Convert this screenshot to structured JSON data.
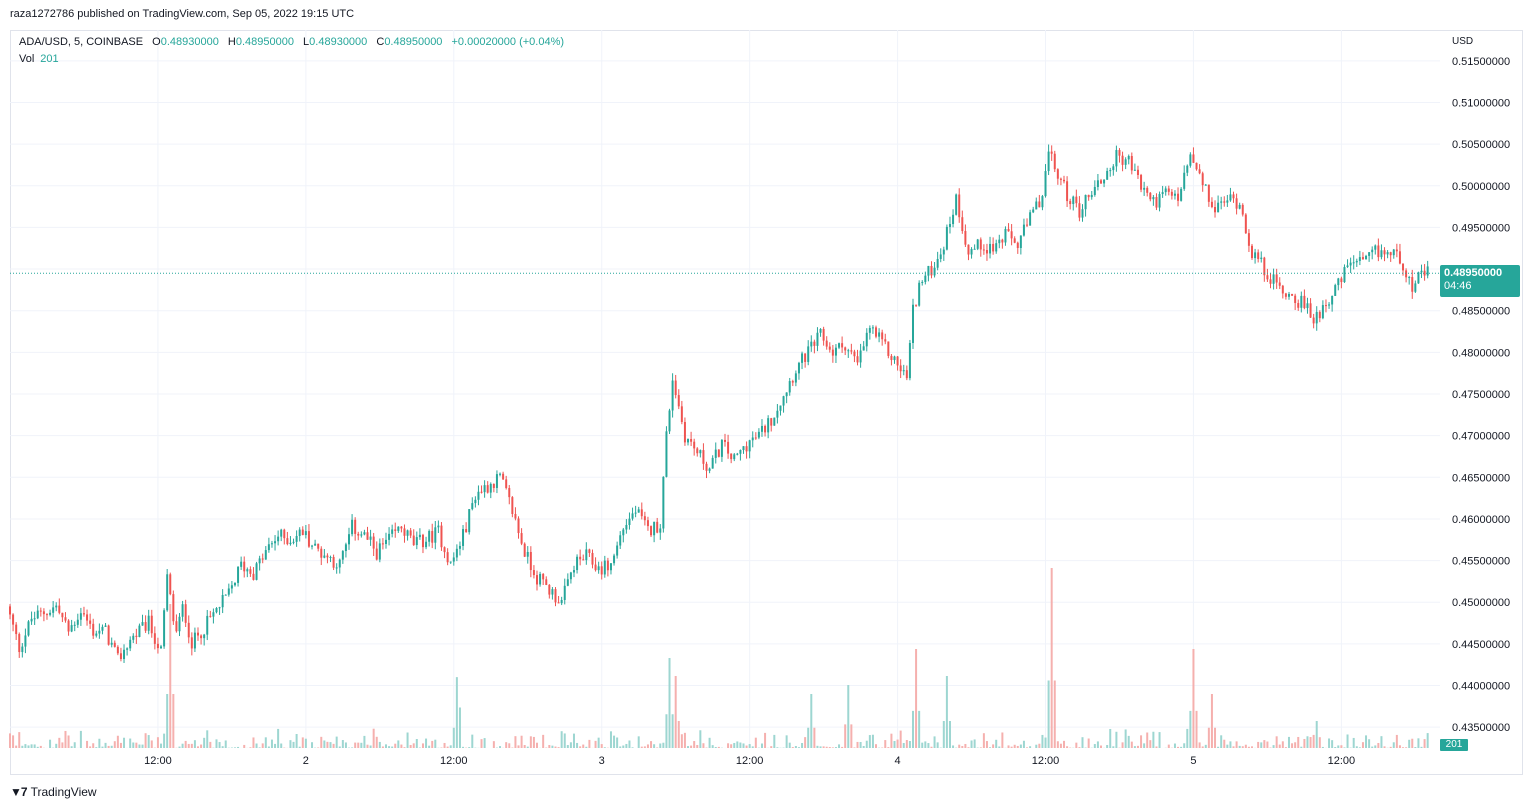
{
  "header": {
    "published_text": "raza1272786 published on TradingView.com, Sep 05, 2022 19:15 UTC"
  },
  "legend": {
    "symbol": "ADA/USD, 5, COINBASE",
    "open_label": "O",
    "open": "0.48930000",
    "high_label": "H",
    "high": "0.48950000",
    "low_label": "L",
    "low": "0.48930000",
    "close_label": "C",
    "close": "0.48950000",
    "change": "+0.00020000 (+0.04%)",
    "vol_label": "Vol",
    "vol_value": "201"
  },
  "price_axis": {
    "currency": "USD",
    "last_price": "0.48950000",
    "countdown": "04:46",
    "volume_tag": "201"
  },
  "footer": {
    "brand": "TradingView"
  },
  "colors": {
    "up": "#26a69a",
    "down": "#ef5350",
    "up_volume": "#9dd6d1",
    "down_volume": "#f5b0ae",
    "grid": "#f0f3fa"
  },
  "chart_data": {
    "type": "candlestick",
    "symbol": "ADA/USD",
    "interval": "5",
    "exchange": "COINBASE",
    "y_axis": {
      "unit": "USD",
      "ticks": [
        "0.51500000",
        "0.51000000",
        "0.50500000",
        "0.50000000",
        "0.49500000",
        "0.49000000",
        "0.48500000",
        "0.48000000",
        "0.47500000",
        "0.47000000",
        "0.46500000",
        "0.46000000",
        "0.45500000",
        "0.45000000",
        "0.44500000",
        "0.44000000",
        "0.43500000"
      ],
      "range": [
        0.4325,
        0.5175
      ]
    },
    "x_axis": {
      "ticks": [
        "12:00",
        "2",
        "12:00",
        "3",
        "12:00",
        "4",
        "12:00",
        "5",
        "12:00"
      ],
      "tick_hours": [
        12,
        24,
        36,
        48,
        60,
        72,
        84,
        96,
        108
      ],
      "range_hours": [
        0,
        116
      ]
    },
    "price_path": [
      {
        "t": 0,
        "p": 0.4495
      },
      {
        "t": 1,
        "p": 0.4445
      },
      {
        "t": 2,
        "p": 0.448
      },
      {
        "t": 4,
        "p": 0.4495
      },
      {
        "t": 5,
        "p": 0.4465
      },
      {
        "t": 6,
        "p": 0.449
      },
      {
        "t": 7,
        "p": 0.4465
      },
      {
        "t": 8,
        "p": 0.4465
      },
      {
        "t": 9,
        "p": 0.443
      },
      {
        "t": 10,
        "p": 0.4455
      },
      {
        "t": 11.5,
        "p": 0.4475
      },
      {
        "t": 12.5,
        "p": 0.444
      },
      {
        "t": 13,
        "p": 0.453
      },
      {
        "t": 13.7,
        "p": 0.446
      },
      {
        "t": 14.3,
        "p": 0.4495
      },
      {
        "t": 15,
        "p": 0.445
      },
      {
        "t": 16,
        "p": 0.447
      },
      {
        "t": 17,
        "p": 0.449
      },
      {
        "t": 18,
        "p": 0.451
      },
      {
        "t": 19,
        "p": 0.4545
      },
      {
        "t": 20,
        "p": 0.4535
      },
      {
        "t": 21,
        "p": 0.456
      },
      {
        "t": 22,
        "p": 0.458
      },
      {
        "t": 23,
        "p": 0.4575
      },
      {
        "t": 24,
        "p": 0.4585
      },
      {
        "t": 25,
        "p": 0.4565
      },
      {
        "t": 26,
        "p": 0.4555
      },
      {
        "t": 27,
        "p": 0.4545
      },
      {
        "t": 28,
        "p": 0.459
      },
      {
        "t": 29,
        "p": 0.458
      },
      {
        "t": 30,
        "p": 0.456
      },
      {
        "t": 31,
        "p": 0.4575
      },
      {
        "t": 32,
        "p": 0.459
      },
      {
        "t": 33,
        "p": 0.457
      },
      {
        "t": 34,
        "p": 0.4575
      },
      {
        "t": 35,
        "p": 0.4585
      },
      {
        "t": 36,
        "p": 0.4545
      },
      {
        "t": 37,
        "p": 0.458
      },
      {
        "t": 38,
        "p": 0.463
      },
      {
        "t": 39,
        "p": 0.464
      },
      {
        "t": 40,
        "p": 0.465
      },
      {
        "t": 41,
        "p": 0.461
      },
      {
        "t": 42,
        "p": 0.456
      },
      {
        "t": 43,
        "p": 0.453
      },
      {
        "t": 44,
        "p": 0.4515
      },
      {
        "t": 45,
        "p": 0.45
      },
      {
        "t": 46,
        "p": 0.4545
      },
      {
        "t": 47,
        "p": 0.4555
      },
      {
        "t": 48,
        "p": 0.454
      },
      {
        "t": 49,
        "p": 0.4545
      },
      {
        "t": 50,
        "p": 0.459
      },
      {
        "t": 51,
        "p": 0.461
      },
      {
        "t": 52,
        "p": 0.4585
      },
      {
        "t": 53,
        "p": 0.4595
      },
      {
        "t": 53.5,
        "p": 0.47
      },
      {
        "t": 54,
        "p": 0.477
      },
      {
        "t": 55,
        "p": 0.47
      },
      {
        "t": 56,
        "p": 0.468
      },
      {
        "t": 57,
        "p": 0.466
      },
      {
        "t": 58,
        "p": 0.469
      },
      {
        "t": 59,
        "p": 0.467
      },
      {
        "t": 60,
        "p": 0.469
      },
      {
        "t": 61,
        "p": 0.47
      },
      {
        "t": 62,
        "p": 0.472
      },
      {
        "t": 63,
        "p": 0.475
      },
      {
        "t": 64,
        "p": 0.478
      },
      {
        "t": 65,
        "p": 0.48
      },
      {
        "t": 66,
        "p": 0.482
      },
      {
        "t": 67,
        "p": 0.48
      },
      {
        "t": 68,
        "p": 0.481
      },
      {
        "t": 69,
        "p": 0.4785
      },
      {
        "t": 70,
        "p": 0.483
      },
      {
        "t": 71,
        "p": 0.481
      },
      {
        "t": 72,
        "p": 0.479
      },
      {
        "t": 73,
        "p": 0.477
      },
      {
        "t": 73.5,
        "p": 0.485
      },
      {
        "t": 74,
        "p": 0.488
      },
      {
        "t": 75,
        "p": 0.49
      },
      {
        "t": 76,
        "p": 0.493
      },
      {
        "t": 77,
        "p": 0.4985
      },
      {
        "t": 78,
        "p": 0.492
      },
      {
        "t": 79,
        "p": 0.493
      },
      {
        "t": 80,
        "p": 0.4925
      },
      {
        "t": 81,
        "p": 0.494
      },
      {
        "t": 82,
        "p": 0.493
      },
      {
        "t": 83,
        "p": 0.496
      },
      {
        "t": 84,
        "p": 0.499
      },
      {
        "t": 84.5,
        "p": 0.504
      },
      {
        "t": 85,
        "p": 0.502
      },
      {
        "t": 86,
        "p": 0.499
      },
      {
        "t": 87,
        "p": 0.497
      },
      {
        "t": 88,
        "p": 0.4995
      },
      {
        "t": 89,
        "p": 0.501
      },
      {
        "t": 90,
        "p": 0.5035
      },
      {
        "t": 91,
        "p": 0.503
      },
      {
        "t": 92,
        "p": 0.5
      },
      {
        "t": 93,
        "p": 0.498
      },
      {
        "t": 94,
        "p": 0.499
      },
      {
        "t": 95,
        "p": 0.4985
      },
      {
        "t": 96,
        "p": 0.5035
      },
      {
        "t": 97,
        "p": 0.5
      },
      {
        "t": 98,
        "p": 0.497
      },
      {
        "t": 99,
        "p": 0.4985
      },
      {
        "t": 100,
        "p": 0.498
      },
      {
        "t": 101,
        "p": 0.492
      },
      {
        "t": 102,
        "p": 0.49
      },
      {
        "t": 103,
        "p": 0.488
      },
      {
        "t": 104,
        "p": 0.487
      },
      {
        "t": 105,
        "p": 0.486
      },
      {
        "t": 106,
        "p": 0.484
      },
      {
        "t": 107,
        "p": 0.486
      },
      {
        "t": 108,
        "p": 0.488
      },
      {
        "t": 109,
        "p": 0.491
      },
      {
        "t": 110,
        "p": 0.4905
      },
      {
        "t": 111,
        "p": 0.492
      },
      {
        "t": 112,
        "p": 0.492
      },
      {
        "t": 113,
        "p": 0.4915
      },
      {
        "t": 114,
        "p": 0.488
      },
      {
        "t": 115,
        "p": 0.4895
      }
    ],
    "volume_spikes": [
      {
        "t": 13,
        "v": 0.8
      },
      {
        "t": 36.3,
        "v": 0.45
      },
      {
        "t": 53.5,
        "v": 0.5
      },
      {
        "t": 54,
        "v": 0.4
      },
      {
        "t": 65,
        "v": 0.3
      },
      {
        "t": 68,
        "v": 0.35
      },
      {
        "t": 73.5,
        "v": 0.55
      },
      {
        "t": 76,
        "v": 0.4
      },
      {
        "t": 84.5,
        "v": 1.0
      },
      {
        "t": 96,
        "v": 0.55
      },
      {
        "t": 97.5,
        "v": 0.3
      },
      {
        "t": 106,
        "v": 0.15
      }
    ]
  }
}
